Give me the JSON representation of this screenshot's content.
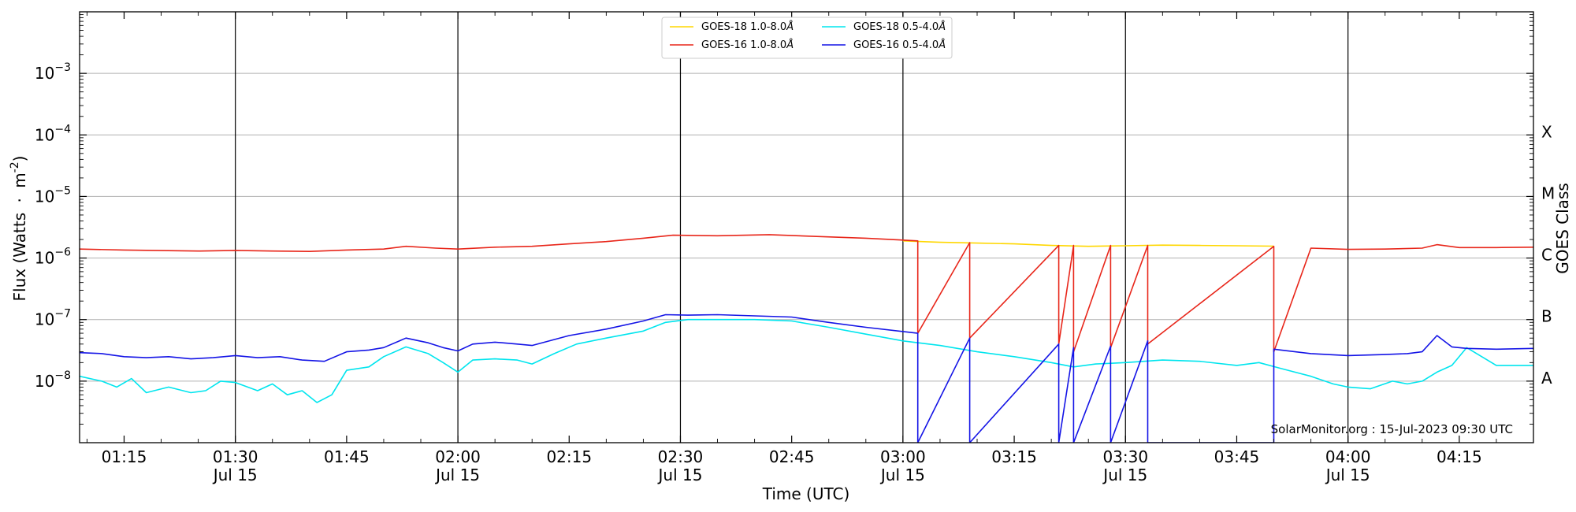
{
  "chart_data": {
    "type": "line",
    "title": "",
    "xlabel": "Time (UTC)",
    "ylabel_main": "Flux (Watts",
    "ylabel_units": "m",
    "ylabel_exp": "-2",
    "ylabel_close": ")",
    "ylabel_dot": "·",
    "right_ylabel": "GOES Class",
    "yscale": "log",
    "ylim": [
      1e-09,
      0.01
    ],
    "xlim": [
      "01:09",
      "04:25"
    ],
    "grid": "horizontal",
    "legend_position": "top-center",
    "date_label": "Jul 15",
    "x_ticks": [
      "01:15",
      "01:30",
      "01:45",
      "02:00",
      "02:15",
      "02:30",
      "02:45",
      "03:00",
      "03:15",
      "03:30",
      "03:45",
      "04:00",
      "04:15"
    ],
    "x_ticks_with_date": [
      "01:30",
      "02:00",
      "02:30",
      "03:00",
      "03:30",
      "04:00"
    ],
    "y_ticks": [
      {
        "value": 1e-08,
        "base": "10",
        "exp": "−8"
      },
      {
        "value": 1e-07,
        "base": "10",
        "exp": "−7"
      },
      {
        "value": 1e-06,
        "base": "10",
        "exp": "−6"
      },
      {
        "value": 1e-05,
        "base": "10",
        "exp": "−5"
      },
      {
        "value": 0.0001,
        "base": "10",
        "exp": "−4"
      },
      {
        "value": 0.001,
        "base": "10",
        "exp": "−3"
      }
    ],
    "goes_classes": [
      {
        "label": "A",
        "value": 1e-08
      },
      {
        "label": "B",
        "value": 1e-07
      },
      {
        "label": "C",
        "value": 1e-06
      },
      {
        "label": "M",
        "value": 1e-05
      },
      {
        "label": "X",
        "value": 0.0001
      }
    ],
    "vertical_lines": [
      "01:30",
      "02:00",
      "02:30",
      "03:00",
      "03:30",
      "04:00"
    ],
    "watermark": "SolarMonitor.org : 15-Jul-2023 09:30 UTC",
    "series": [
      {
        "name": "GOES-18 1.0-8.0",
        "angstrom": "Å",
        "color": "#FFD700",
        "x": [
          "03:00",
          "03:05",
          "03:10",
          "03:15",
          "03:20",
          "03:25",
          "03:30",
          "03:35",
          "03:40",
          "03:45",
          "03:50"
        ],
        "values": [
          1.9e-06,
          1.8e-06,
          1.75e-06,
          1.7e-06,
          1.6e-06,
          1.55e-06,
          1.58e-06,
          1.62e-06,
          1.6e-06,
          1.58e-06,
          1.56e-06
        ]
      },
      {
        "name": "GOES-16 1.0-8.0",
        "angstrom": "Å",
        "color": "#E8261A",
        "x": [
          "01:09",
          "01:15",
          "01:20",
          "01:25",
          "01:30",
          "01:35",
          "01:40",
          "01:45",
          "01:50",
          "01:53",
          "01:57",
          "02:00",
          "02:05",
          "02:10",
          "02:15",
          "02:20",
          "02:25",
          "02:29",
          "02:35",
          "02:42",
          "02:48",
          "02:55",
          "03:02",
          "03:02",
          "03:09",
          "03:09",
          "03:21",
          "03:21",
          "03:23",
          "03:23",
          "03:28",
          "03:28",
          "03:33",
          "03:33",
          "03:50",
          "03:50",
          "03:55",
          "04:00",
          "04:05",
          "04:10",
          "04:12",
          "04:15",
          "04:20",
          "04:25"
        ],
        "values": [
          1.4e-06,
          1.35e-06,
          1.32e-06,
          1.3e-06,
          1.33e-06,
          1.3e-06,
          1.28e-06,
          1.35e-06,
          1.4e-06,
          1.55e-06,
          1.45e-06,
          1.4e-06,
          1.5e-06,
          1.55e-06,
          1.7e-06,
          1.85e-06,
          2.1e-06,
          2.35e-06,
          2.3e-06,
          2.4e-06,
          2.25e-06,
          2.1e-06,
          1.9e-06,
          6e-08,
          1.78e-06,
          5e-08,
          1.6e-06,
          4e-08,
          1.6e-06,
          3e-08,
          1.6e-06,
          3.5e-08,
          1.6e-06,
          4e-08,
          1.55e-06,
          3e-08,
          1.45e-06,
          1.38e-06,
          1.4e-06,
          1.45e-06,
          1.65e-06,
          1.48e-06,
          1.48e-06,
          1.5e-06
        ]
      },
      {
        "name": "GOES-18 0.5-4.0",
        "angstrom": "Å",
        "color": "#00E5EE",
        "x": [
          "01:09",
          "01:12",
          "01:14",
          "01:16",
          "01:18",
          "01:21",
          "01:24",
          "01:26",
          "01:28",
          "01:30",
          "01:33",
          "01:35",
          "01:37",
          "01:39",
          "01:41",
          "01:43",
          "01:45",
          "01:48",
          "01:50",
          "01:53",
          "01:56",
          "01:58",
          "02:00",
          "02:02",
          "02:05",
          "02:08",
          "02:10",
          "02:13",
          "02:16",
          "02:20",
          "02:25",
          "02:28",
          "02:31",
          "02:35",
          "02:40",
          "02:45",
          "02:50",
          "02:55",
          "03:00",
          "03:05",
          "03:10",
          "03:15",
          "03:20",
          "03:23",
          "03:26",
          "03:30",
          "03:35",
          "03:40",
          "03:45",
          "03:48",
          "03:51",
          "03:55",
          "03:58",
          "04:00",
          "04:03",
          "04:06",
          "04:08",
          "04:10",
          "04:12",
          "04:14",
          "04:16",
          "04:20",
          "04:25"
        ],
        "values": [
          1.2e-08,
          1e-08,
          8e-09,
          1.1e-08,
          6.5e-09,
          8e-09,
          6.5e-09,
          7e-09,
          1e-08,
          9.5e-09,
          7e-09,
          9e-09,
          6e-09,
          7e-09,
          4.5e-09,
          6e-09,
          1.5e-08,
          1.7e-08,
          2.5e-08,
          3.6e-08,
          2.8e-08,
          2e-08,
          1.4e-08,
          2.2e-08,
          2.3e-08,
          2.2e-08,
          1.9e-08,
          2.8e-08,
          4e-08,
          5e-08,
          6.5e-08,
          9e-08,
          1e-07,
          1e-07,
          1e-07,
          9.5e-08,
          7.5e-08,
          5.8e-08,
          4.5e-08,
          3.8e-08,
          3e-08,
          2.5e-08,
          2e-08,
          1.7e-08,
          1.9e-08,
          2e-08,
          2.2e-08,
          2.1e-08,
          1.8e-08,
          2e-08,
          1.6e-08,
          1.2e-08,
          9e-09,
          8e-09,
          7.5e-09,
          1e-08,
          9e-09,
          1e-08,
          1.4e-08,
          1.8e-08,
          3.5e-08,
          1.8e-08,
          1.8e-08
        ]
      },
      {
        "name": "GOES-16 0.5-4.0",
        "angstrom": "Å",
        "color": "#1414E6",
        "x": [
          "01:09",
          "01:12",
          "01:15",
          "01:18",
          "01:21",
          "01:24",
          "01:27",
          "01:30",
          "01:33",
          "01:36",
          "01:39",
          "01:42",
          "01:45",
          "01:48",
          "01:50",
          "01:53",
          "01:56",
          "01:58",
          "02:00",
          "02:02",
          "02:05",
          "02:08",
          "02:10",
          "02:15",
          "02:20",
          "02:25",
          "02:28",
          "02:31",
          "02:35",
          "02:40",
          "02:45",
          "02:50",
          "02:55",
          "03:02",
          "03:02",
          "03:09",
          "03:09",
          "03:21",
          "03:21",
          "03:23",
          "03:23",
          "03:28",
          "03:28",
          "03:33",
          "03:33",
          "03:50",
          "03:50",
          "03:55",
          "04:00",
          "04:05",
          "04:08",
          "04:10",
          "04:12",
          "04:14",
          "04:16",
          "04:20",
          "04:25"
        ],
        "values": [
          2.9e-08,
          2.8e-08,
          2.5e-08,
          2.4e-08,
          2.5e-08,
          2.3e-08,
          2.4e-08,
          2.6e-08,
          2.4e-08,
          2.5e-08,
          2.2e-08,
          2.1e-08,
          3e-08,
          3.2e-08,
          3.5e-08,
          5e-08,
          4.2e-08,
          3.5e-08,
          3.1e-08,
          4e-08,
          4.3e-08,
          4e-08,
          3.8e-08,
          5.5e-08,
          7e-08,
          9.5e-08,
          1.2e-07,
          1.18e-07,
          1.2e-07,
          1.15e-07,
          1.1e-07,
          9e-08,
          7.5e-08,
          6e-08,
          1e-09,
          5e-08,
          1e-09,
          4e-08,
          1e-09,
          3.5e-08,
          1e-09,
          3.7e-08,
          1e-09,
          4.5e-08,
          1e-09,
          1e-09,
          3.3e-08,
          2.8e-08,
          2.6e-08,
          2.7e-08,
          2.8e-08,
          3e-08,
          5.5e-08,
          3.6e-08,
          3.4e-08,
          3.3e-08,
          3.4e-08
        ]
      }
    ]
  }
}
